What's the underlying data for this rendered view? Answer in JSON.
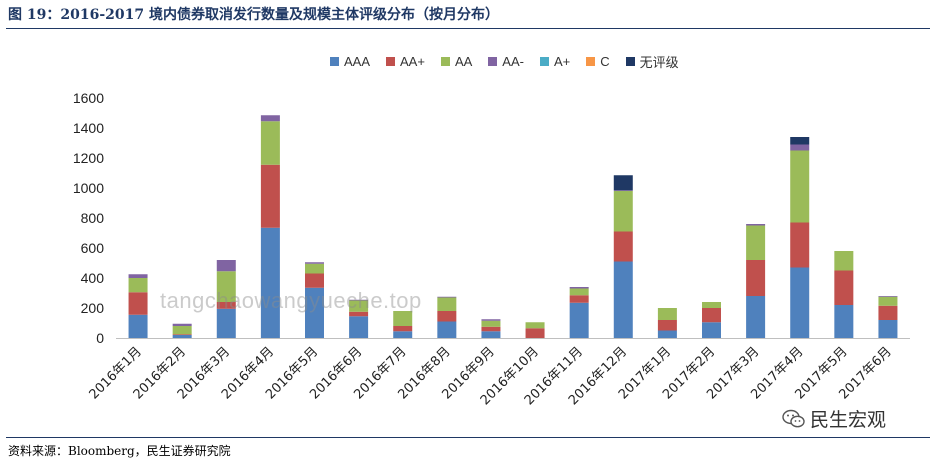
{
  "header": {
    "title": "图 19：2016-2017 境内债券取消发行数量及规模主体评级分布（按月分布）"
  },
  "footer": {
    "source": "资料来源：Bloomberg，民生证券研究院"
  },
  "watermark": {
    "text": "tangchaowangyueche.top"
  },
  "brand": {
    "name": "民生宏观",
    "icon": "wechat-icon"
  },
  "chart_data": {
    "type": "bar",
    "stacked": true,
    "title": "",
    "xlabel": "",
    "ylabel": "",
    "ylim": [
      0,
      1600
    ],
    "yticks": [
      0,
      200,
      400,
      600,
      800,
      1000,
      1200,
      1400,
      1600
    ],
    "ytick_labels": [
      "0",
      "200",
      "400",
      "600",
      "800",
      "1000",
      "1200",
      "1400",
      "1600"
    ],
    "legend_position": "top-center",
    "grid": false,
    "categories": [
      "2016年1月",
      "2016年2月",
      "2016年3月",
      "2016年4月",
      "2016年5月",
      "2016年6月",
      "2016年7月",
      "2016年8月",
      "2016年9月",
      "2016年10月",
      "2016年11月",
      "2016年12月",
      "2017年1月",
      "2017年2月",
      "2017年3月",
      "2017年4月",
      "2017年5月",
      "2017年6月"
    ],
    "series": [
      {
        "name": "AAA",
        "color": "#4f81bd",
        "values": [
          155,
          20,
          195,
          735,
          335,
          145,
          45,
          110,
          45,
          0,
          235,
          510,
          50,
          105,
          280,
          470,
          220,
          120
        ]
      },
      {
        "name": "AA+",
        "color": "#c0504d",
        "values": [
          150,
          5,
          45,
          420,
          95,
          30,
          35,
          70,
          30,
          65,
          50,
          200,
          70,
          95,
          240,
          300,
          230,
          95
        ]
      },
      {
        "name": "AA",
        "color": "#9bbb59",
        "values": [
          95,
          55,
          205,
          290,
          65,
          75,
          100,
          90,
          40,
          40,
          45,
          270,
          80,
          40,
          230,
          480,
          130,
          60
        ]
      },
      {
        "name": "AA-",
        "color": "#8064a2",
        "values": [
          25,
          15,
          75,
          40,
          10,
          5,
          0,
          5,
          10,
          0,
          10,
          5,
          0,
          0,
          10,
          40,
          0,
          5
        ]
      },
      {
        "name": "A+",
        "color": "#4bacc6",
        "values": [
          0,
          0,
          0,
          0,
          0,
          0,
          0,
          0,
          0,
          0,
          0,
          0,
          0,
          0,
          0,
          0,
          0,
          0
        ]
      },
      {
        "name": "C",
        "color": "#f79646",
        "values": [
          0,
          0,
          0,
          0,
          0,
          0,
          0,
          0,
          0,
          0,
          0,
          0,
          0,
          0,
          0,
          0,
          0,
          0
        ]
      },
      {
        "name": "无评级",
        "color": "#1f3864",
        "values": [
          0,
          0,
          0,
          0,
          0,
          0,
          0,
          0,
          0,
          0,
          0,
          100,
          0,
          0,
          0,
          50,
          0,
          0
        ]
      }
    ]
  }
}
